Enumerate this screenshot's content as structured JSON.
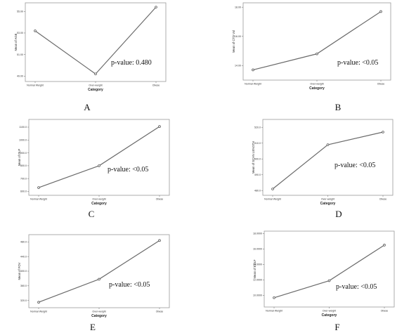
{
  "chart_data": [
    {
      "type": "line",
      "panel_letter": "A",
      "categories": [
        "Normal Weight",
        "Over-weight",
        "Obese"
      ],
      "values": [
        53.2,
        49.2,
        55.4
      ],
      "ylabel": "Mean of AGE",
      "xlabel": "Category",
      "ylim": [
        48.5,
        55.8
      ],
      "yticks": [
        49.0,
        51.0,
        53.0,
        55.0
      ],
      "ytick_labels": [
        "49.00",
        "51.00",
        "53.00",
        "55.00"
      ],
      "annotation": "p-value: 0.480",
      "grid": false
    },
    {
      "type": "line",
      "panel_letter": "B",
      "categories": [
        "Normal Weight",
        "Over-weight",
        "Obese"
      ],
      "values": [
        13.7,
        14.8,
        17.7
      ],
      "ylabel": "Mean of CTD Vol",
      "xlabel": "Category",
      "ylim": [
        13.0,
        18.3
      ],
      "yticks": [
        14.0,
        16.0,
        18.0
      ],
      "ytick_labels": [
        "14.00",
        "16.00",
        "18.00"
      ],
      "annotation": "p-value: <0.05",
      "grid": false
    },
    {
      "type": "line",
      "panel_letter": "C",
      "categories": [
        "Normal Weight",
        "Over-weight",
        "Obese"
      ],
      "values": [
        630,
        800,
        1105
      ],
      "ylabel": "Mean of DLP",
      "xlabel": "Category",
      "ylim": [
        570,
        1160
      ],
      "yticks": [
        600,
        700,
        800,
        900,
        1000,
        1100
      ],
      "ytick_labels": [
        "600.0",
        "700.0",
        "800.0",
        "900.0",
        "1000.0",
        "1100.0"
      ],
      "annotation": "p-value: <0.05",
      "grid": false
    },
    {
      "type": "line",
      "panel_letter": "D",
      "categories": [
        "Normal Weight",
        "Over-weight",
        "Obese"
      ],
      "values": [
        481,
        509,
        517
      ],
      "ylabel": "Mean of SCAN LENGTH",
      "xlabel": "Category",
      "ylim": [
        477,
        525
      ],
      "yticks": [
        480,
        490,
        500,
        510,
        520
      ],
      "ytick_labels": [
        "480.0",
        "490.0",
        "500.0",
        "510.0",
        "520.0"
      ],
      "annotation": "p-value: <0.05",
      "grid": false
    },
    {
      "type": "line",
      "panel_letter": "E",
      "categories": [
        "Normal Weight",
        "Over-weight",
        "Obese"
      ],
      "values": [
        315,
        378,
        484
      ],
      "ylabel": "Mean of FOV",
      "xlabel": "Category",
      "ylim": [
        300,
        500
      ],
      "yticks": [
        320,
        360,
        400,
        440,
        480
      ],
      "ytick_labels": [
        "320.0",
        "360.0",
        "400.0",
        "440.0",
        "480.0"
      ],
      "annotation": "p-value: <0.05",
      "grid": false
    },
    {
      "type": "line",
      "panel_letter": "F",
      "categories": [
        "Normal Weight",
        "Over-weight",
        "Obese"
      ],
      "values": [
        9.7,
        11.9,
        16.5
      ],
      "ylabel": "Mean of EDLF",
      "xlabel": "Category",
      "ylim": [
        8.5,
        18.3
      ],
      "yticks": [
        10.0,
        12.0,
        14.0,
        16.0,
        18.0
      ],
      "ytick_labels": [
        "10.0000",
        "12.0000",
        "14.0000",
        "16.0000",
        "18.0000"
      ],
      "annotation": "p-value: <0.05",
      "grid": false
    }
  ]
}
